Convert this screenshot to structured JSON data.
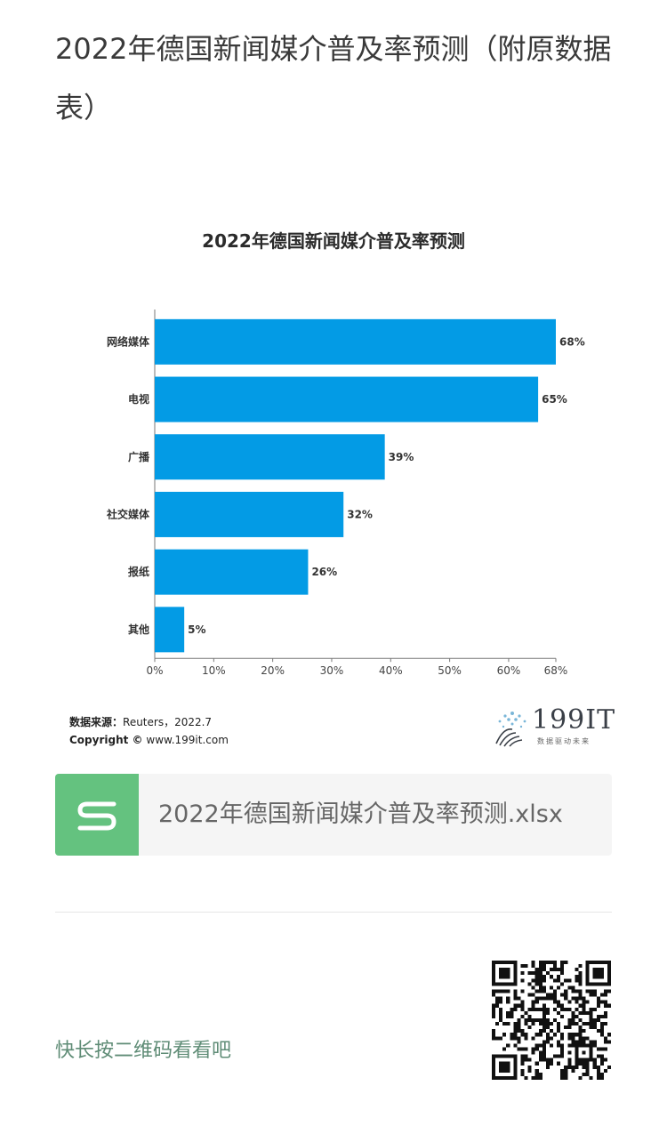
{
  "article": {
    "title": "2022年德国新闻媒介普及率预测（附原数据表）"
  },
  "chart_data": {
    "type": "bar",
    "orientation": "horizontal",
    "title": "2022年德国新闻媒介普及率预测",
    "categories": [
      "网络媒体",
      "电视",
      "广播",
      "社交媒体",
      "报纸",
      "其他"
    ],
    "values": [
      68,
      65,
      39,
      32,
      26,
      5
    ],
    "value_labels": [
      "68%",
      "65%",
      "39%",
      "32%",
      "26%",
      "5%"
    ],
    "x_ticks": [
      "0%",
      "10%",
      "20%",
      "30%",
      "40%",
      "50%",
      "60%",
      "68%"
    ],
    "x_tick_values": [
      0,
      10,
      20,
      30,
      40,
      50,
      60,
      68
    ],
    "xlim": [
      0,
      68
    ],
    "xlabel": "",
    "ylabel": "",
    "bar_color": "#039be5",
    "grid": false,
    "legend": "none"
  },
  "source": {
    "label": "数据来源：",
    "text": "Reuters，2022.7",
    "copyright_label": "Copyright ©",
    "copyright_text": "www.199it.com"
  },
  "brand": {
    "name": "199IT",
    "tagline": "数据驱动未来"
  },
  "attachment": {
    "file_name": "2022年德国新闻媒介普及率预测.xlsx",
    "icon": "spreadsheet-icon",
    "icon_color": "#64c27f"
  },
  "footer": {
    "qr_hint": "快长按二维码看看吧",
    "qr_icon": "qr-code-icon"
  }
}
